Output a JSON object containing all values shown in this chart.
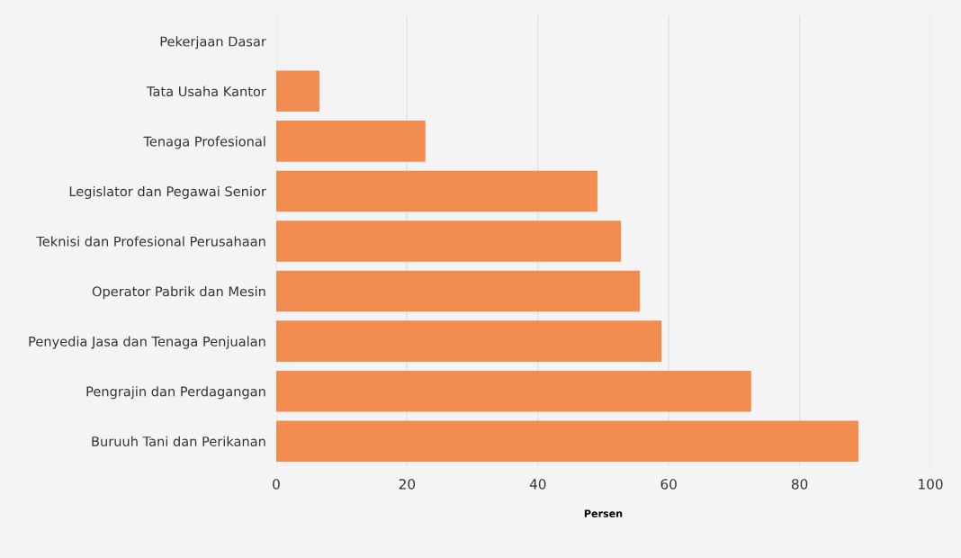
{
  "chart_data": {
    "type": "bar",
    "orientation": "horizontal",
    "xlabel": "Persen",
    "categories": [
      "Pekerjaan Dasar",
      "Tata Usaha Kantor",
      "Tenaga Profesional",
      "Legislator dan Pegawai Senior",
      "Teknisi dan Profesional Perusahaan",
      "Operator Pabrik dan Mesin",
      "Penyedia Jasa dan Tenaga Penjualan",
      "Pengrajin dan Perdagangan",
      "Buruuh Tani dan Perikanan"
    ],
    "values": [
      0,
      6.6,
      22.8,
      49.1,
      52.7,
      55.6,
      58.9,
      72.6,
      89.0
    ],
    "color": "#f28c50",
    "xlim": [
      0,
      100
    ],
    "xticks": [
      0,
      20,
      40,
      60,
      80,
      100
    ],
    "grid": "x",
    "legend": false
  }
}
